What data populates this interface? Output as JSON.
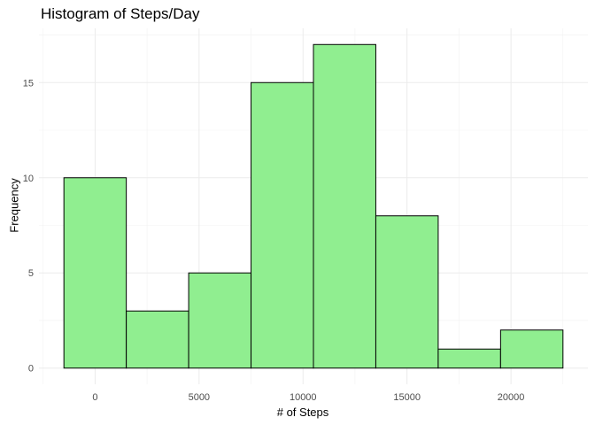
{
  "chart_data": {
    "type": "bar",
    "title": "Histogram of Steps/Day",
    "xlabel": "# of Steps",
    "ylabel": "Frequency",
    "bins": [
      {
        "from": -1500,
        "to": 1500,
        "count": 10
      },
      {
        "from": 1500,
        "to": 4500,
        "count": 3
      },
      {
        "from": 4500,
        "to": 7500,
        "count": 5
      },
      {
        "from": 7500,
        "to": 10500,
        "count": 15
      },
      {
        "from": 10500,
        "to": 13500,
        "count": 17
      },
      {
        "from": 13500,
        "to": 16500,
        "count": 8
      },
      {
        "from": 16500,
        "to": 19500,
        "count": 1
      },
      {
        "from": 19500,
        "to": 22500,
        "count": 2
      }
    ],
    "x_ticks": [
      "0",
      "5000",
      "10000",
      "15000",
      "20000"
    ],
    "y_ticks": [
      "0",
      "5",
      "10",
      "15"
    ],
    "xlim": [
      -2700,
      23700
    ],
    "ylim": [
      -0.85,
      17.85
    ],
    "grid": true,
    "colors": {
      "fill": "#90EE90",
      "stroke": "#000000",
      "grid_major": "#EBEBEB",
      "grid_minor": "#F2F2F2",
      "tick_text": "#4D4D4D"
    }
  }
}
